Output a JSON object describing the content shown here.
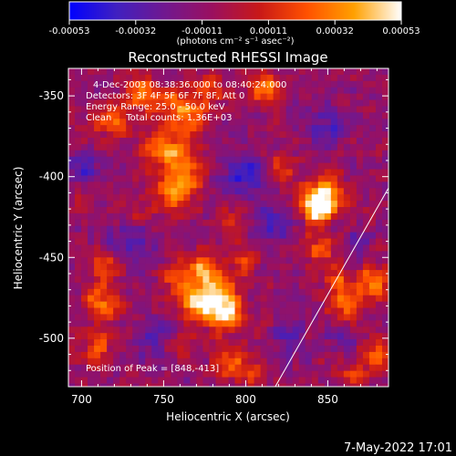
{
  "chart_data": {
    "type": "heatmap",
    "title": "Reconstructed RHESSI Image",
    "xlabel": "Heliocentric X (arcsec)",
    "ylabel": "Heliocentric Y (arcsec)",
    "xlim": [
      692,
      887
    ],
    "ylim": [
      -530,
      -333
    ],
    "x_ticks": [
      "700",
      "750",
      "800",
      "850"
    ],
    "x_tick_values": [
      700,
      750,
      800,
      850
    ],
    "y_ticks": [
      "-350",
      "-400",
      "-450",
      "-500"
    ],
    "y_tick_values": [
      -350,
      -400,
      -450,
      -500
    ],
    "colorbar": {
      "range": [
        -0.00053,
        0.00053
      ],
      "ticks": [
        "-0.00053",
        "-0.00032",
        "-0.00011",
        "0.00011",
        "0.00032",
        "0.00053"
      ],
      "unit_label": "(photons cm⁻² s⁻¹ asec⁻²)",
      "colors": [
        "#0000ff",
        "#4020c0",
        "#701890",
        "#9a1060",
        "#c81818",
        "#ff5000",
        "#ffa000",
        "#ffffff"
      ]
    },
    "overlay_text": [
      "4-Dec-2003 08:38:36.000 to 08:40:24.000",
      "Detectors: 3F 4F 5F 6F 7F 8F, Att 0",
      "Energy Range: 25.0 - 50.0 keV",
      "Clean     Total counts: 1.36E+03"
    ],
    "peak_text": "Position of Peak = [848,-413]",
    "peak": {
      "x": 848,
      "y": -413
    },
    "limb_line": [
      [
        818,
        -530
      ],
      [
        887,
        -407
      ]
    ],
    "blobs": [
      {
        "x": 848,
        "y": -413,
        "r": 9,
        "v": 1.0
      },
      {
        "x": 843,
        "y": -420,
        "r": 6,
        "v": 0.8
      },
      {
        "x": 788,
        "y": -485,
        "r": 8,
        "v": 0.95
      },
      {
        "x": 782,
        "y": -470,
        "r": 9,
        "v": 0.75
      },
      {
        "x": 770,
        "y": -478,
        "r": 8,
        "v": 0.7
      },
      {
        "x": 760,
        "y": -462,
        "r": 7,
        "v": 0.55
      },
      {
        "x": 776,
        "y": -455,
        "r": 7,
        "v": 0.6
      },
      {
        "x": 800,
        "y": -450,
        "r": 6,
        "v": 0.45
      },
      {
        "x": 757,
        "y": -408,
        "r": 10,
        "v": 0.75
      },
      {
        "x": 763,
        "y": -390,
        "r": 8,
        "v": 0.55
      },
      {
        "x": 748,
        "y": -382,
        "r": 8,
        "v": 0.6
      },
      {
        "x": 762,
        "y": -360,
        "r": 9,
        "v": 0.8
      },
      {
        "x": 742,
        "y": -352,
        "r": 7,
        "v": 0.55
      },
      {
        "x": 722,
        "y": -365,
        "r": 7,
        "v": 0.6
      },
      {
        "x": 705,
        "y": -370,
        "r": 6,
        "v": 0.35
      },
      {
        "x": 780,
        "y": -345,
        "r": 6,
        "v": 0.5
      },
      {
        "x": 812,
        "y": -345,
        "r": 7,
        "v": 0.65
      },
      {
        "x": 822,
        "y": -395,
        "r": 7,
        "v": 0.5
      },
      {
        "x": 792,
        "y": -430,
        "r": 6,
        "v": 0.45
      },
      {
        "x": 715,
        "y": -455,
        "r": 7,
        "v": 0.5
      },
      {
        "x": 712,
        "y": -478,
        "r": 8,
        "v": 0.65
      },
      {
        "x": 708,
        "y": -505,
        "r": 7,
        "v": 0.5
      },
      {
        "x": 845,
        "y": -445,
        "r": 7,
        "v": 0.55
      },
      {
        "x": 856,
        "y": -465,
        "r": 6,
        "v": 0.45
      },
      {
        "x": 862,
        "y": -480,
        "r": 7,
        "v": 0.65
      },
      {
        "x": 878,
        "y": -465,
        "r": 7,
        "v": 0.7
      },
      {
        "x": 880,
        "y": -510,
        "r": 7,
        "v": 0.55
      },
      {
        "x": 866,
        "y": -525,
        "r": 6,
        "v": 0.45
      },
      {
        "x": 790,
        "y": -515,
        "r": 7,
        "v": 0.5
      },
      {
        "x": 805,
        "y": -522,
        "r": 6,
        "v": 0.4
      },
      {
        "x": 760,
        "y": -505,
        "r": 6,
        "v": 0.4
      },
      {
        "x": 732,
        "y": -425,
        "r": 6,
        "v": 0.3
      },
      {
        "x": 700,
        "y": -420,
        "r": 6,
        "v": 0.35
      },
      {
        "x": 735,
        "y": -345,
        "r": 6,
        "v": 0.55
      },
      {
        "x": 868,
        "y": -440,
        "r": 6,
        "v": -0.3
      },
      {
        "x": 800,
        "y": -400,
        "r": 10,
        "v": -0.45
      },
      {
        "x": 815,
        "y": -430,
        "r": 8,
        "v": -0.4
      },
      {
        "x": 850,
        "y": -370,
        "r": 9,
        "v": -0.35
      },
      {
        "x": 730,
        "y": -440,
        "r": 10,
        "v": -0.4
      },
      {
        "x": 745,
        "y": -500,
        "r": 8,
        "v": -0.35
      },
      {
        "x": 826,
        "y": -500,
        "r": 7,
        "v": -0.3
      },
      {
        "x": 700,
        "y": -395,
        "r": 8,
        "v": -0.35
      },
      {
        "x": 860,
        "y": -500,
        "r": 5,
        "v": -0.35
      }
    ]
  },
  "footer_timestamp": "7-May-2022 17:01"
}
